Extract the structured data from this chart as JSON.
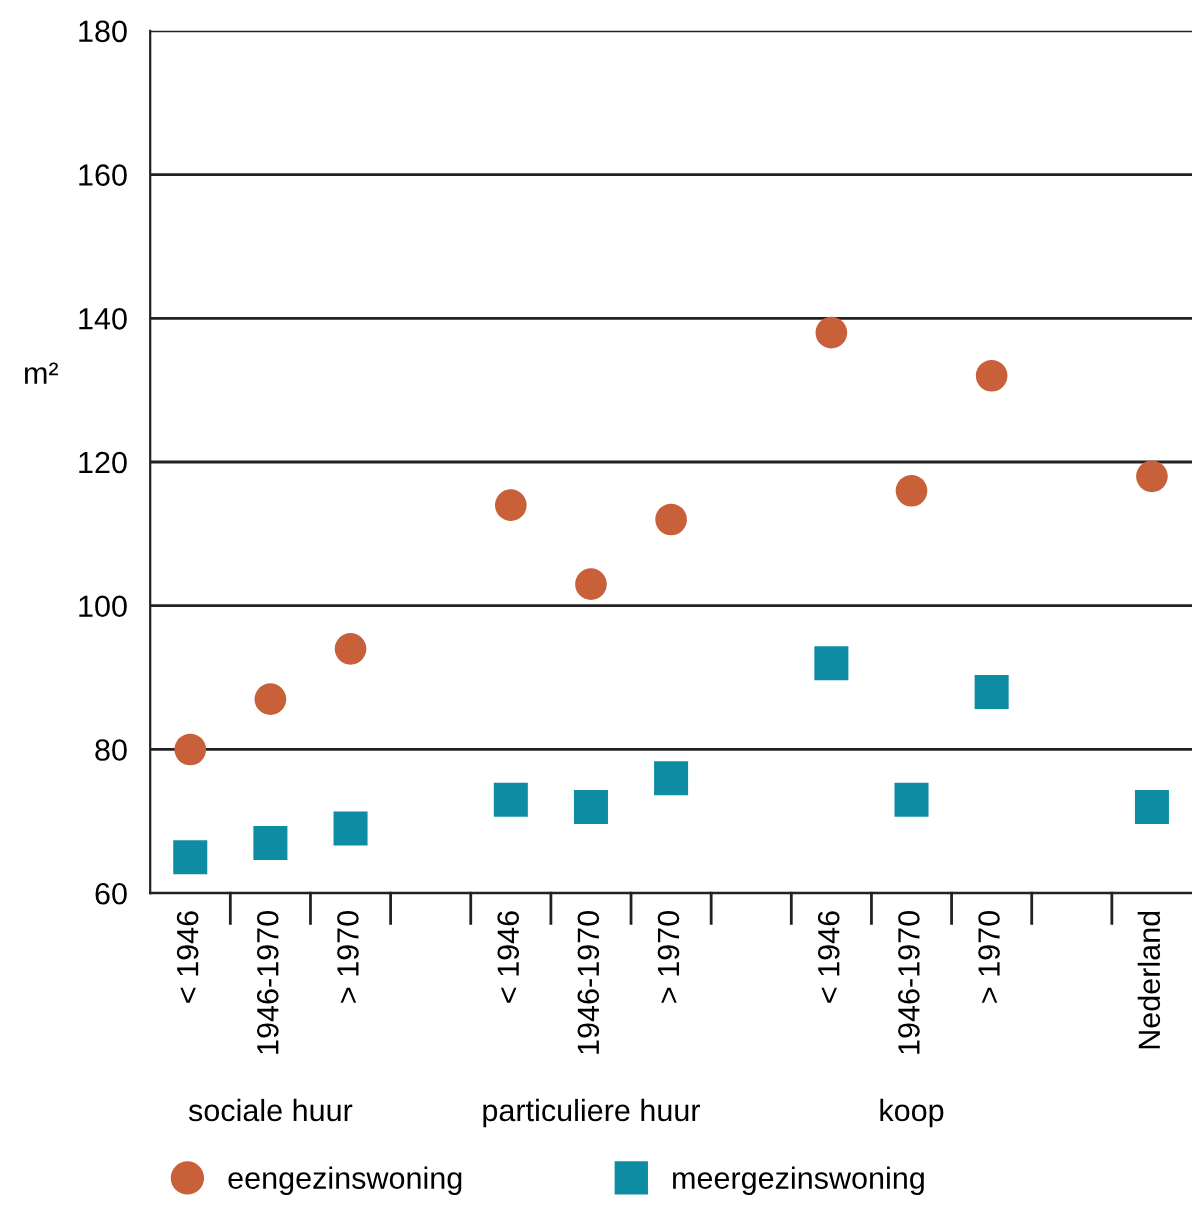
{
  "chart_data": {
    "type": "scatter",
    "ylabel": "m²",
    "categories": [
      "< 1946",
      "1946-1970",
      "> 1970",
      null,
      "< 1946",
      "1946-1970",
      "> 1970",
      null,
      "< 1946",
      "1946-1970",
      "> 1970",
      null,
      "Nederland"
    ],
    "series": [
      {
        "name": "eengezinswoning",
        "color": "#c8603a",
        "marker": "circle",
        "values": [
          80,
          87,
          94,
          null,
          114,
          103,
          112,
          null,
          138,
          116,
          132,
          null,
          118
        ]
      },
      {
        "name": "meergezinswoning",
        "color": "#0e8ca3",
        "marker": "square",
        "values": [
          65,
          67,
          69,
          null,
          73,
          72,
          76,
          null,
          92,
          73,
          88,
          null,
          72
        ]
      }
    ],
    "annotations": [
      "sociale huur",
      "particuliere huur",
      "koop"
    ],
    "ylim": [
      60,
      180
    ],
    "yticks": [
      60,
      80,
      100,
      120,
      140,
      160,
      180
    ],
    "grid": "y",
    "legend": "bottom"
  }
}
